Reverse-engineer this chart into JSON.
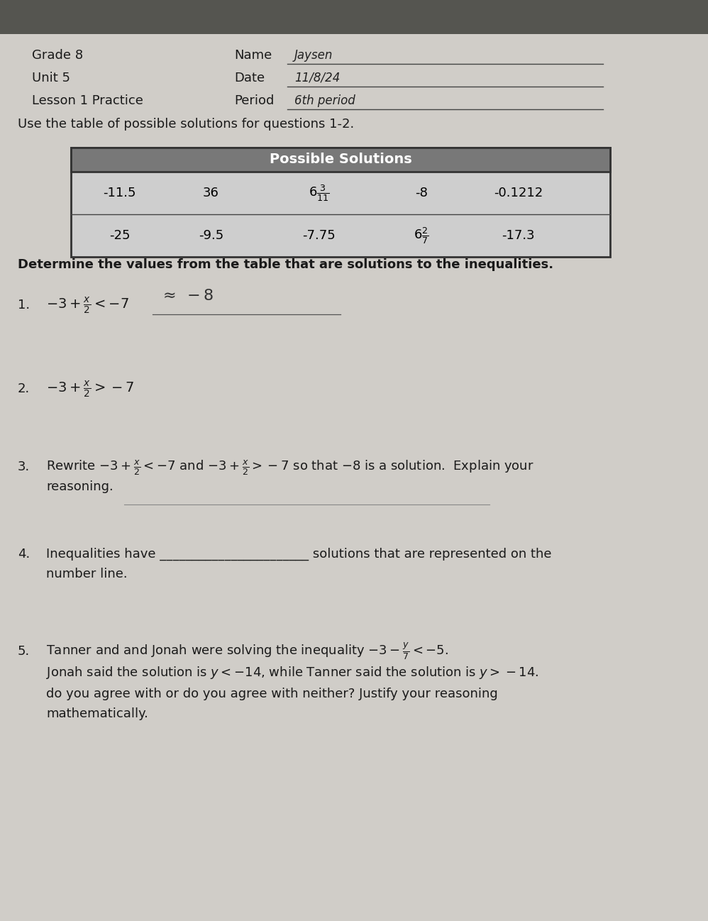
{
  "bg_color": "#b8b4ae",
  "paper_color": "#d0cdc8",
  "header_left": [
    "Grade 8",
    "Unit 5",
    "Lesson 1 Practice"
  ],
  "header_right_labels": [
    "Name",
    "Date",
    "Period"
  ],
  "header_right_values": [
    "Jaysen",
    "11/8/24",
    "6th period"
  ],
  "intro_text": "Use the table of possible solutions for questions 1-2.",
  "table_header": "Possible Solutions",
  "table_row1": [
    "-11.5",
    "36",
    "$6\\frac{3}{11}$",
    "-8",
    "-0.1212"
  ],
  "table_row2": [
    "-25",
    "-9.5",
    "-7.75",
    "$6\\frac{2}{7}$",
    "-17.3"
  ],
  "determine_text": "Determine the values from the table that are solutions to the inequalities.",
  "title_fontsize": 13,
  "body_fontsize": 13,
  "small_fontsize": 12,
  "table_header_bg": "#787878",
  "table_bg": "#cecece"
}
